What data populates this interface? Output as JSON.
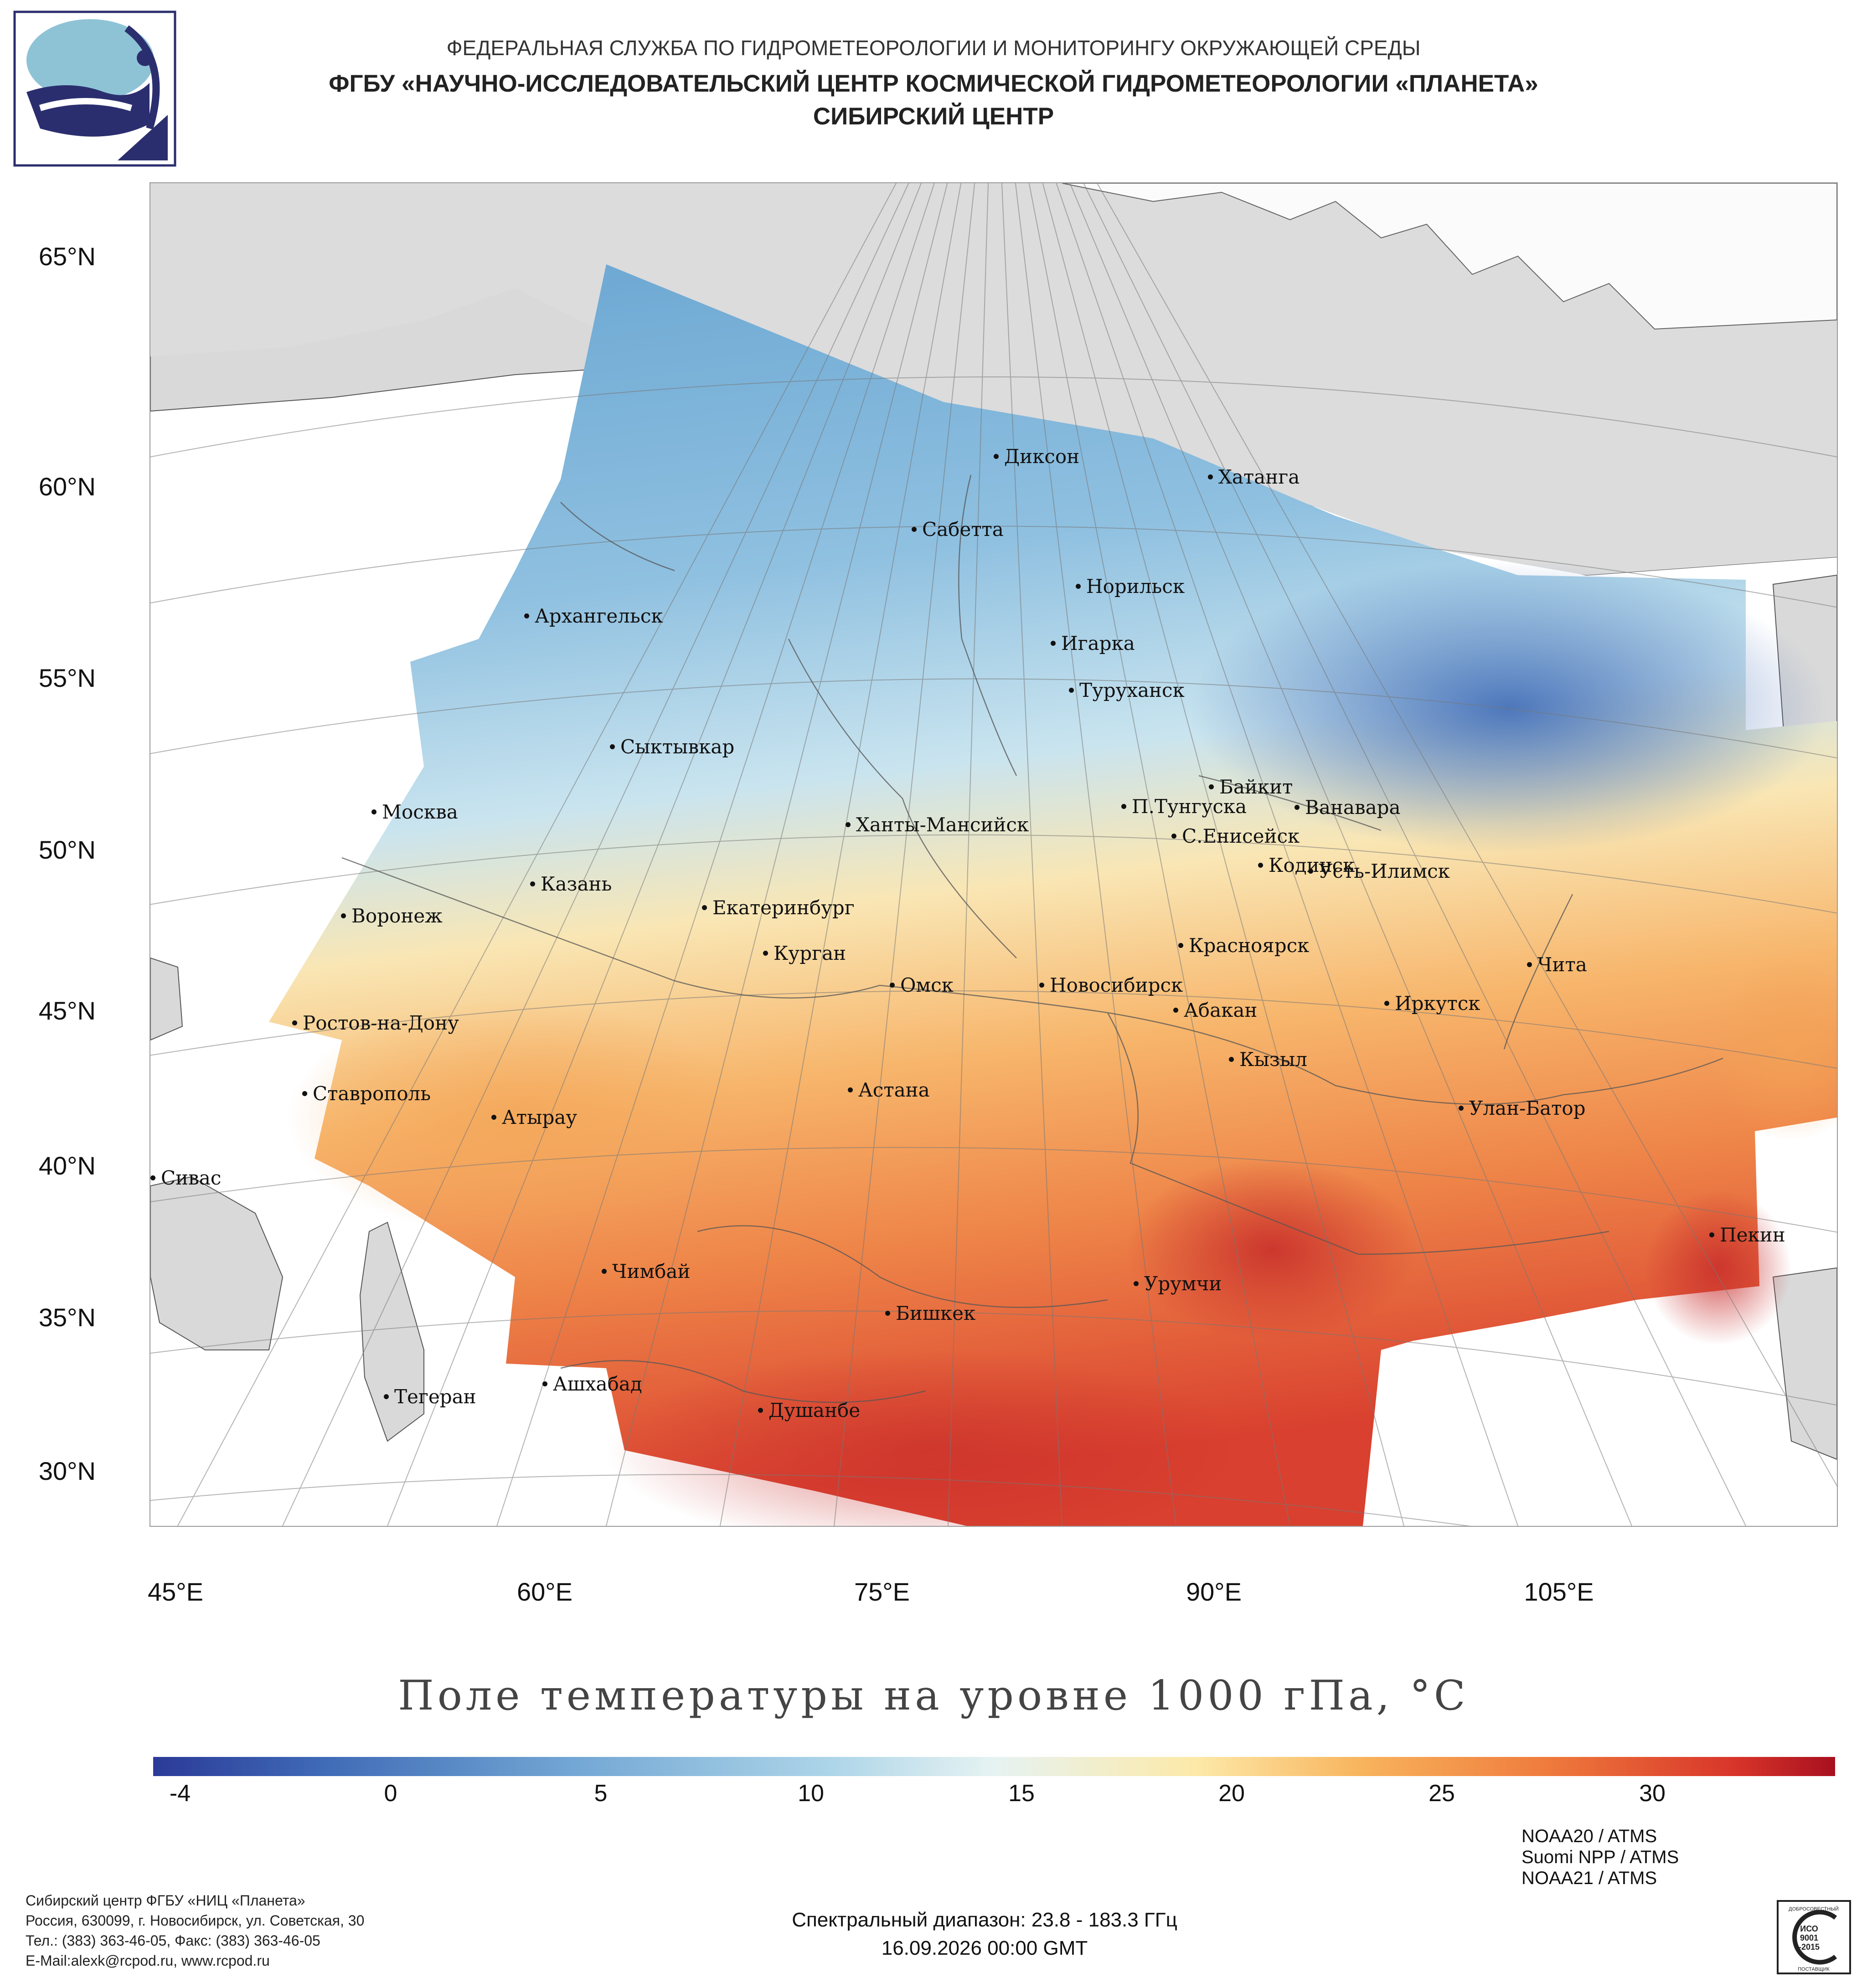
{
  "header": {
    "line1": "ФЕДЕРАЛЬНАЯ СЛУЖБА ПО ГИДРОМЕТЕОРОЛОГИИ И МОНИТОРИНГУ ОКРУЖАЮЩЕЙ СРЕДЫ",
    "line2": "ФГБУ «НАУЧНО-ИССЛЕДОВАТЕЛЬСКИЙ ЦЕНТР КОСМИЧЕСКОЙ ГИДРОМЕТЕОРОЛОГИИ «ПЛАНЕТА»",
    "line3": "СИБИРСКИЙ ЦЕНТР"
  },
  "map": {
    "title": "Поле температуры на уровне 1000 гПа, °C",
    "lat_labels": [
      "65°N",
      "60°N",
      "55°N",
      "50°N",
      "45°N",
      "40°N",
      "35°N",
      "30°N"
    ],
    "lon_labels": [
      "45°E",
      "60°E",
      "75°E",
      "90°E",
      "105°E"
    ],
    "cities": [
      "Диксон",
      "Хатанга",
      "Сабетта",
      "Норильск",
      "Архангельск",
      "Игарка",
      "Туруханск",
      "Сыктывкар",
      "Байкит",
      "Москва",
      "П.Тунгуска",
      "Ванавара",
      "Ханты-Мансийск",
      "С.Енисейск",
      "Кодинск",
      "Усть-Илимск",
      "Казань",
      "Екатеринбург",
      "Воронеж",
      "Красноярск",
      "Курган",
      "Чита",
      "Омск",
      "Новосибирск",
      "Иркутск",
      "Абакан",
      "Ростов-на-Дону",
      "Кызыл",
      "Ставрополь",
      "Астана",
      "Улан-Батор",
      "Атырау",
      "Сивас",
      "Пекин",
      "Чимбай",
      "Урумчи",
      "Бишкек",
      "Ашхабад",
      "Тегеран",
      "Душанбе"
    ]
  },
  "colorbar": {
    "ticks": [
      "-4",
      "0",
      "5",
      "10",
      "15",
      "20",
      "25",
      "30"
    ],
    "min_value": -5,
    "max_value": 35,
    "colors": [
      "#2b3a98",
      "#73a7d4",
      "#e6f3f2",
      "#fde9a8",
      "#ef7a3c",
      "#a8101f"
    ]
  },
  "footer": {
    "org_line1": "Сибирский центр ФГБУ «НИЦ «Планета»",
    "org_line2": "Россия, 630099, г. Новосибирск, ул. Советская, 30",
    "org_line3": "Тел.: (383) 363-46-05, Факс: (383) 363-46-05",
    "org_line4": "E-Mail:alexk@rcpod.ru, www.rcpod.ru",
    "spectral": "Спектральный диапазон: 23.8 - 183.3 ГГц",
    "datetime": "16.09.2026 00:00 GMT",
    "sensor1": "NOAA20 / ATMS",
    "sensor2": "Suomi NPP / ATMS",
    "sensor3": "NOAA21 / ATMS",
    "iso_top": "ДОБРОСОВЕСТНЫЙ",
    "iso_mid1": "ИСО",
    "iso_mid2": "9001",
    "iso_mid3": "-2015",
    "iso_bottom": "ПОСТАВЩИК"
  }
}
